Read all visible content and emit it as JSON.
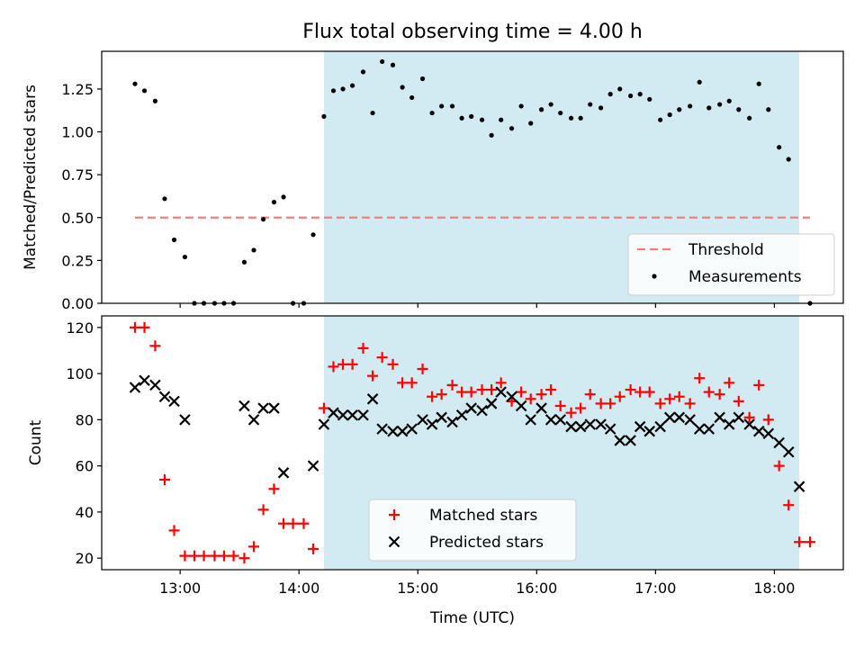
{
  "chart_data": [
    {
      "type": "scatter",
      "title": "Flux total observing time = 4.00 h",
      "xlabel": "",
      "ylabel": "Matched/Predicted stars",
      "ylim": [
        0,
        1.47
      ],
      "yticks": [
        "0.00",
        "0.25",
        "0.50",
        "0.75",
        "1.00",
        "1.25"
      ],
      "yticks_values": [
        0,
        0.25,
        0.5,
        0.75,
        1.0,
        1.25
      ],
      "shaded_region": [
        14.21,
        18.21
      ],
      "legend": {
        "placement": "lower right",
        "threshold_label": "Threshold",
        "measurements_label": "Measurements"
      },
      "threshold": {
        "name": "Threshold",
        "y": 0.5,
        "x": [
          12.62,
          18.3
        ],
        "color": "#f08080"
      },
      "series": [
        {
          "name": "Measurements",
          "color": "#000000",
          "x": [
            12.62,
            12.7,
            12.79,
            12.87,
            12.95,
            13.04,
            13.12,
            13.2,
            13.29,
            13.37,
            13.45,
            13.54,
            13.62,
            13.7,
            13.79,
            13.87,
            13.95,
            14.04,
            14.12,
            14.21,
            14.29,
            14.37,
            14.45,
            14.54,
            14.62,
            14.7,
            14.79,
            14.87,
            14.95,
            15.04,
            15.12,
            15.2,
            15.29,
            15.37,
            15.45,
            15.54,
            15.62,
            15.7,
            15.79,
            15.87,
            15.95,
            16.04,
            16.12,
            16.2,
            16.29,
            16.37,
            16.45,
            16.54,
            16.62,
            16.7,
            16.79,
            16.87,
            16.95,
            17.04,
            17.12,
            17.2,
            17.29,
            17.37,
            17.45,
            17.54,
            17.62,
            17.7,
            17.79,
            17.87,
            17.95,
            18.04,
            18.12,
            18.3
          ],
          "y": [
            1.28,
            1.24,
            1.18,
            0.61,
            0.37,
            0.27,
            0,
            0,
            0,
            0,
            0,
            0.24,
            0.31,
            0.49,
            0.59,
            0.62,
            0,
            0,
            0.4,
            1.09,
            1.24,
            1.25,
            1.27,
            1.35,
            1.11,
            1.41,
            1.39,
            1.26,
            1.2,
            1.31,
            1.11,
            1.15,
            1.15,
            1.08,
            1.09,
            1.07,
            0.98,
            1.07,
            1.02,
            1.15,
            1.05,
            1.13,
            1.16,
            1.11,
            1.08,
            1.08,
            1.16,
            1.14,
            1.22,
            1.25,
            1.21,
            1.22,
            1.19,
            1.07,
            1.1,
            1.13,
            1.15,
            1.29,
            1.14,
            1.16,
            1.18,
            1.13,
            1.08,
            1.28,
            1.13,
            0.91,
            0.84,
            0
          ]
        }
      ]
    },
    {
      "type": "scatter",
      "title": "",
      "xlabel": "Time (UTC)",
      "ylabel": "Count",
      "xlim": [
        12.34,
        18.58
      ],
      "ylim": [
        15,
        125
      ],
      "xticks": [
        "13:00",
        "14:00",
        "15:00",
        "16:00",
        "17:00",
        "18:00"
      ],
      "xticks_values": [
        13,
        14,
        15,
        16,
        17,
        18
      ],
      "yticks": [
        "20",
        "40",
        "60",
        "80",
        "100",
        "120"
      ],
      "yticks_values": [
        20,
        40,
        60,
        80,
        100,
        120
      ],
      "shaded_region": [
        14.21,
        18.21
      ],
      "legend": {
        "placement": "lower center"
      },
      "series": [
        {
          "name": "Matched stars",
          "marker": "plus",
          "color": "#ff0000",
          "x": [
            12.62,
            12.7,
            12.79,
            12.87,
            12.95,
            13.04,
            13.12,
            13.2,
            13.29,
            13.37,
            13.45,
            13.54,
            13.62,
            13.7,
            13.79,
            13.87,
            13.95,
            14.04,
            14.12,
            14.21,
            14.29,
            14.37,
            14.45,
            14.54,
            14.62,
            14.7,
            14.79,
            14.87,
            14.95,
            15.04,
            15.12,
            15.2,
            15.29,
            15.37,
            15.45,
            15.54,
            15.62,
            15.7,
            15.79,
            15.87,
            15.95,
            16.04,
            16.12,
            16.2,
            16.29,
            16.37,
            16.45,
            16.54,
            16.62,
            16.7,
            16.79,
            16.87,
            16.95,
            17.04,
            17.12,
            17.2,
            17.29,
            17.37,
            17.45,
            17.54,
            17.62,
            17.7,
            17.79,
            17.87,
            17.95,
            18.04,
            18.12,
            18.21,
            18.3
          ],
          "y": [
            120,
            120,
            112,
            54,
            32,
            21,
            21,
            21,
            21,
            21,
            21,
            20,
            25,
            41,
            50,
            35,
            35,
            35,
            24,
            85,
            103,
            104,
            104,
            111,
            99,
            107,
            104,
            96,
            96,
            102,
            90,
            91,
            95,
            92,
            92,
            93,
            93,
            96,
            88,
            92,
            89,
            91,
            93,
            86,
            83,
            85,
            91,
            87,
            87,
            90,
            93,
            92,
            92,
            87,
            89,
            90,
            87,
            98,
            92,
            91,
            96,
            88,
            81,
            95,
            80,
            60,
            43,
            27,
            27
          ]
        },
        {
          "name": "Predicted stars",
          "marker": "x",
          "color": "#000000",
          "x": [
            12.62,
            12.7,
            12.79,
            12.87,
            12.95,
            13.04,
            13.54,
            13.62,
            13.7,
            13.79,
            13.87,
            14.12,
            14.21,
            14.29,
            14.37,
            14.45,
            14.54,
            14.62,
            14.7,
            14.79,
            14.87,
            14.95,
            15.04,
            15.12,
            15.2,
            15.29,
            15.37,
            15.45,
            15.54,
            15.62,
            15.7,
            15.79,
            15.87,
            15.95,
            16.04,
            16.12,
            16.2,
            16.29,
            16.37,
            16.45,
            16.54,
            16.62,
            16.7,
            16.79,
            16.87,
            16.95,
            17.04,
            17.12,
            17.2,
            17.29,
            17.37,
            17.45,
            17.54,
            17.62,
            17.7,
            17.79,
            17.87,
            17.95,
            18.04,
            18.12,
            18.21
          ],
          "y": [
            94,
            97,
            95,
            90,
            88,
            80,
            86,
            80,
            85,
            85,
            57,
            60,
            78,
            83,
            82,
            82,
            82,
            89,
            76,
            75,
            75,
            76,
            80,
            78,
            81,
            79,
            82,
            85,
            84,
            87,
            92,
            90,
            86,
            80,
            85,
            80,
            80,
            77,
            77,
            78,
            78,
            76,
            71,
            71,
            77,
            75,
            77,
            81,
            81,
            80,
            76,
            76,
            81,
            78,
            81,
            78,
            75,
            74,
            70,
            66,
            51
          ]
        }
      ]
    }
  ]
}
